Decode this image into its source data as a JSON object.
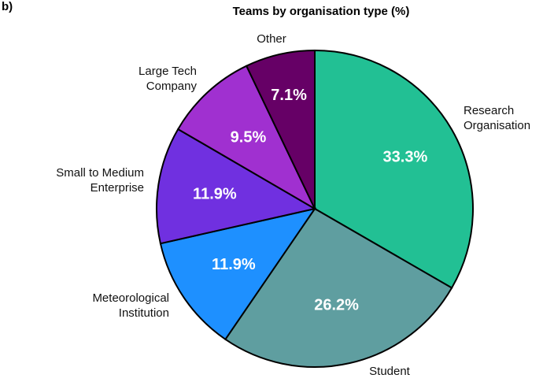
{
  "panel_label": "b)",
  "chart_data": {
    "type": "pie",
    "title": "Teams by organisation type (%)",
    "categories": [
      "Research Organisation",
      "Student",
      "Meteorological Institution",
      "Small to Medium Enterprise",
      "Large Tech Company",
      "Other"
    ],
    "values": [
      33.3,
      26.2,
      11.9,
      11.9,
      9.5,
      7.1
    ],
    "value_labels": [
      "33.3%",
      "26.2%",
      "11.9%",
      "11.9%",
      "9.5%",
      "7.1%"
    ],
    "colors": [
      "#22c094",
      "#5f9ea0",
      "#1e90ff",
      "#7030e0",
      "#a030d0",
      "#660066"
    ],
    "start_angle": "12 o'clock, clockwise",
    "legend": "none (direct labels)"
  },
  "labels": {
    "research": [
      "Research",
      "Organisation"
    ],
    "student": [
      "Student"
    ],
    "met": [
      "Meteorological",
      "Institution"
    ],
    "sme": [
      "Small to Medium",
      "Enterprise"
    ],
    "tech": [
      "Large Tech",
      "Company"
    ],
    "other": [
      "Other"
    ]
  }
}
